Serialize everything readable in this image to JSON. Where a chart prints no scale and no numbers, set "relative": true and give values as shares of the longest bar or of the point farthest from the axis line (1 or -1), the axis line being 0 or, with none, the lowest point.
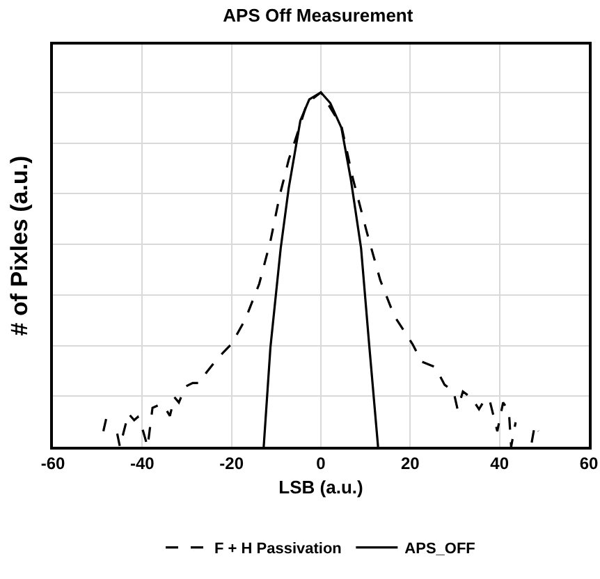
{
  "chart_data": {
    "type": "line",
    "title": "APS Off Measurement",
    "xlabel": "LSB (a.u.)",
    "ylabel": "# of Pixles (a.u.)",
    "relative": true,
    "xlim": [
      -60,
      60
    ],
    "xticks": [
      -60,
      -40,
      -20,
      0,
      20,
      40,
      60
    ],
    "grid": true,
    "legend": "bottom",
    "marker": "none",
    "series": [
      {
        "name": "F + H Passivation",
        "color": "#000000",
        "line_style": "dashed",
        "x": [
          -48.7,
          -47.7,
          -46.6,
          -45.6,
          -45,
          -43.1,
          -41.8,
          -41,
          -39.8,
          -38.8,
          -37.7,
          -35.9,
          -34.7,
          -33.8,
          -32.8,
          -31.8,
          -30.3,
          -28.7,
          -27.2,
          -25.6,
          -23.1,
          -20,
          -16.9,
          -13.8,
          -11.3,
          -9.2,
          -7.2,
          -5.1,
          -3.1,
          0,
          4.6,
          7.2,
          10.3,
          13.3,
          16.4,
          20.5,
          22.6,
          25.6,
          27.7,
          29.7,
          30.6,
          31.8,
          33.8,
          35.4,
          36.9,
          37.9,
          39.5,
          40.8,
          42.1,
          42.6,
          43.6,
          45.5,
          47.2,
          47.9,
          48.7
        ],
        "values": [
          0.044,
          0.1,
          null,
          0.037,
          0,
          0.094,
          0.075,
          0.084,
          0.044,
          0,
          0.11,
          0.12,
          0.106,
          0.087,
          0.14,
          0.125,
          0.17,
          0.18,
          0.18,
          0.21,
          0.25,
          0.29,
          0.36,
          0.46,
          0.58,
          0.71,
          0.81,
          0.89,
          0.97,
          1,
          0.905,
          0.755,
          0.605,
          0.47,
          0.37,
          0.29,
          0.24,
          0.225,
          0.175,
          0.156,
          0.106,
          0.156,
          0.137,
          0.106,
          0.137,
          0.125,
          0.044,
          0.125,
          0.1,
          0,
          0.069,
          null,
          0.012,
          0.062,
          0.044
        ]
      },
      {
        "name": "APS_OFF",
        "color": "#000000",
        "line_style": "solid",
        "x": [
          -12.8,
          -11.3,
          -9.0,
          -7.2,
          -4.6,
          -2.6,
          0,
          2.1,
          4.6,
          6.7,
          9.0,
          10.8,
          12.8
        ],
        "values": [
          0,
          0.28,
          0.56,
          0.73,
          0.92,
          0.98,
          1,
          0.97,
          0.9,
          0.755,
          0.56,
          0.29,
          0
        ]
      }
    ]
  }
}
